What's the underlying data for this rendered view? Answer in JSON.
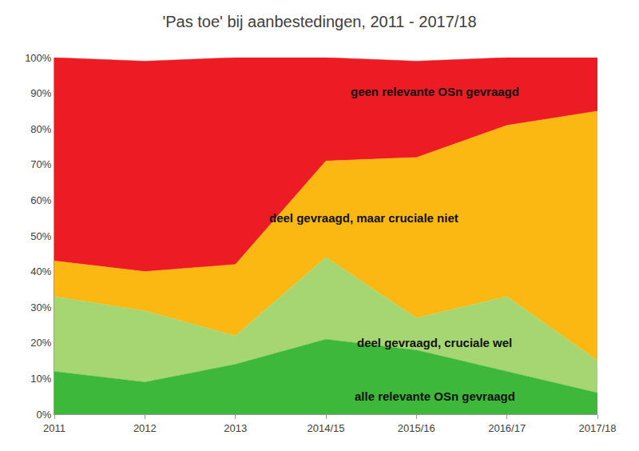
{
  "chart_data": {
    "type": "area",
    "title": "'Pas toe' bij aanbestedingen, 2011 - 2017/18",
    "categories": [
      "2011",
      "2012",
      "2013",
      "2014/15",
      "2015/16",
      "2016/17",
      "2017/18"
    ],
    "stacked": true,
    "grid": false,
    "ylim": [
      0,
      100
    ],
    "yticks": [
      {
        "value": 0,
        "label": "0%"
      },
      {
        "value": 10,
        "label": "10%"
      },
      {
        "value": 20,
        "label": "20%"
      },
      {
        "value": 30,
        "label": "30%"
      },
      {
        "value": 40,
        "label": "40%"
      },
      {
        "value": 50,
        "label": "50%"
      },
      {
        "value": 60,
        "label": "60%"
      },
      {
        "value": 70,
        "label": "70%"
      },
      {
        "value": 80,
        "label": "80%"
      },
      {
        "value": 90,
        "label": "90%"
      },
      {
        "value": 100,
        "label": "100%"
      }
    ],
    "series": [
      {
        "name": "alle relevante OSn gevraagd",
        "color": "#3db83a",
        "values": [
          12,
          9,
          14,
          21,
          18,
          12,
          6
        ]
      },
      {
        "name": "deel gevraagd, cruciale wel",
        "color": "#a6d672",
        "values": [
          21,
          20,
          8,
          23,
          9,
          21,
          9
        ]
      },
      {
        "name": "deel gevraagd, maar cruciale niet",
        "color": "#fbb813",
        "values": [
          10,
          11,
          20,
          27,
          45,
          48,
          70
        ]
      },
      {
        "name": "geen relevante OSn gevraagd",
        "color": "#ed1c24",
        "values": [
          57,
          59,
          58,
          29,
          27,
          19,
          15
        ]
      }
    ]
  }
}
